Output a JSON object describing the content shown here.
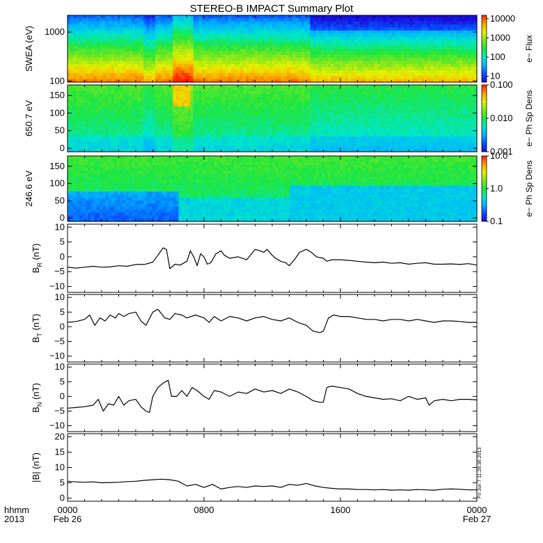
{
  "chart_data": {
    "type": "multi-panel",
    "title": "STEREO-B IMPACT Summary Plot",
    "x_axis": {
      "range": [
        "2013-02-26 00:00",
        "2013-02-27 00:00"
      ],
      "ticks": [
        {
          "value": "00:00",
          "top": "0000",
          "bottom": "Feb 26"
        },
        {
          "value": "08:00",
          "top": "0800",
          "bottom": ""
        },
        {
          "value": "16:00",
          "top": "1600",
          "bottom": ""
        },
        {
          "value": "24:00",
          "top": "0000",
          "bottom": "Feb 27"
        }
      ],
      "label_top": "hhmm",
      "label_bottom": "2013"
    },
    "side_stamp": "Fri Jun  7 11:28:36 2013",
    "spectrograms": [
      {
        "ylabel": "SWEA (eV)",
        "yscale": "log",
        "yrange": [
          95,
          2200
        ],
        "yticks": [
          "100",
          "1000"
        ],
        "ytick_values": [
          100,
          1000
        ],
        "colorbar_label": "e− Flux",
        "colorbar_scale": "log",
        "colorbar_range": [
          5,
          15000
        ],
        "colorbar_ticks": [
          "10",
          "100",
          "1000",
          "10000"
        ],
        "colorbar_tick_values": [
          10,
          100,
          1000,
          10000
        ]
      },
      {
        "ylabel": "650.7 eV",
        "yscale": "linear",
        "yrange": [
          -10,
          180
        ],
        "yticks": [
          "0",
          "50",
          "100",
          "150"
        ],
        "ytick_values": [
          0,
          50,
          100,
          150
        ],
        "colorbar_label": "e− Ph Sp Dens",
        "colorbar_scale": "log",
        "colorbar_range": [
          0.001,
          0.1
        ],
        "colorbar_ticks": [
          "0.001",
          "0.010",
          "0.100"
        ],
        "colorbar_tick_values": [
          0.001,
          0.01,
          0.1
        ]
      },
      {
        "ylabel": "246.6 eV",
        "yscale": "linear",
        "yrange": [
          -10,
          180
        ],
        "yticks": [
          "0",
          "50",
          "100",
          "150"
        ],
        "ytick_values": [
          0,
          50,
          100,
          150
        ],
        "colorbar_label": "e− Ph Sp Dens",
        "colorbar_scale": "log",
        "colorbar_range": [
          0.1,
          10
        ],
        "colorbar_ticks": [
          "0.1",
          "1.0",
          "10.0"
        ],
        "colorbar_tick_values": [
          0.1,
          1,
          10
        ]
      }
    ],
    "line_panels": [
      {
        "ylabel": "B",
        "ylabel_sub": "R",
        "ylabel_unit": "(nT)",
        "yrange": [
          -12,
          11
        ],
        "yticks": [
          "−10",
          "−5",
          "0",
          "5",
          "10"
        ],
        "ytick_values": [
          -10,
          -5,
          0,
          5,
          10
        ],
        "x_hours": [
          0,
          0.5,
          1,
          1.5,
          2,
          2.5,
          3,
          3.5,
          4,
          4.5,
          5,
          5.3,
          5.6,
          5.8,
          6,
          6.3,
          6.6,
          7,
          7.2,
          7.4,
          7.6,
          7.8,
          8,
          8.2,
          8.4,
          8.7,
          9,
          9.2,
          9.5,
          10,
          10.5,
          11,
          11.3,
          11.5,
          11.7,
          12,
          12.2,
          12.5,
          12.8,
          13,
          13.3,
          13.6,
          14,
          14.3,
          14.6,
          15,
          15.2,
          15.5,
          16,
          16.5,
          17,
          17.5,
          18,
          18.5,
          19,
          19.5,
          20,
          20.5,
          21,
          21.5,
          22,
          22.5,
          23,
          23.5,
          24
        ],
        "values": [
          -3.5,
          -3.8,
          -3.5,
          -3.2,
          -3.5,
          -3.4,
          -3,
          -3.2,
          -2.6,
          -2.6,
          -1.8,
          0.5,
          3,
          2.5,
          -4,
          -2.5,
          -2.8,
          -1.5,
          2,
          0,
          -3,
          1,
          0,
          -2.5,
          -2,
          1,
          2,
          0.5,
          -0.5,
          0,
          -1,
          2.5,
          2,
          1.5,
          2.5,
          0.5,
          -0.5,
          -1.5,
          -2,
          -3,
          -1,
          1.5,
          2.5,
          1.5,
          0,
          -0.5,
          -1.5,
          -1,
          -1,
          -1.2,
          -1.5,
          -1.8,
          -2,
          -1.8,
          -2.2,
          -2,
          -2.5,
          -2.2,
          -2,
          -2.5,
          -2.5,
          -2.4,
          -2.6,
          -2.3,
          -2.8
        ]
      },
      {
        "ylabel": "B",
        "ylabel_sub": "T",
        "ylabel_unit": "(nT)",
        "yrange": [
          -12,
          11
        ],
        "yticks": [
          "−10",
          "−5",
          "0",
          "5",
          "10"
        ],
        "ytick_values": [
          -10,
          -5,
          0,
          5,
          10
        ],
        "x_hours": [
          0,
          0.5,
          1,
          1.3,
          1.6,
          1.9,
          2.2,
          2.5,
          2.8,
          3,
          3.3,
          3.6,
          4,
          4.3,
          4.6,
          5,
          5.3,
          5.7,
          6,
          6.3,
          6.7,
          7,
          7.5,
          8,
          8.3,
          8.6,
          9,
          9.5,
          10,
          10.5,
          11,
          11.5,
          12,
          12.5,
          13,
          13.5,
          14,
          14.4,
          14.8,
          15,
          15.3,
          15.6,
          16,
          16.5,
          17,
          17.5,
          18,
          18.5,
          19,
          19.5,
          20,
          20.5,
          21,
          21.5,
          22,
          22.5,
          23,
          23.5,
          24
        ],
        "values": [
          1.5,
          1.8,
          2.5,
          4,
          0.5,
          3,
          2,
          4,
          3,
          4.5,
          3.5,
          4.5,
          5,
          2,
          0.5,
          5,
          6,
          3,
          2.5,
          4.5,
          4,
          3,
          4,
          3,
          1.5,
          3.5,
          2,
          3.5,
          3,
          2,
          3,
          3.5,
          2.5,
          2,
          3,
          1.5,
          0.5,
          -1.5,
          -2,
          -1.5,
          3,
          4,
          3.5,
          3.5,
          3,
          2.5,
          2.5,
          2,
          2.5,
          2.5,
          2,
          2.5,
          2,
          1.5,
          2,
          2,
          1.8,
          1.5,
          1.5
        ]
      },
      {
        "ylabel": "B",
        "ylabel_sub": "N",
        "ylabel_unit": "(nT)",
        "yrange": [
          -12,
          11
        ],
        "yticks": [
          "−10",
          "−5",
          "0",
          "5",
          "10"
        ],
        "ytick_values": [
          -10,
          -5,
          0,
          5,
          10
        ],
        "x_hours": [
          0,
          0.5,
          1,
          1.5,
          1.8,
          2.1,
          2.4,
          2.7,
          3,
          3.3,
          3.6,
          4,
          4.3,
          4.6,
          4.8,
          5,
          5.3,
          5.6,
          5.9,
          6.1,
          6.4,
          6.7,
          7,
          7.3,
          7.6,
          8,
          8.3,
          8.6,
          9,
          9.5,
          10,
          10.5,
          11,
          11.5,
          12,
          12.5,
          13,
          13.5,
          14,
          14.4,
          14.8,
          15,
          15.2,
          15.5,
          16,
          16.5,
          17,
          17.5,
          18,
          18.5,
          19,
          19.5,
          20,
          20.5,
          21,
          21.2,
          21.5,
          22,
          22.5,
          23,
          23.5,
          24
        ],
        "values": [
          -4,
          -3.8,
          -3.5,
          -3,
          -1,
          -5,
          -2.5,
          -3,
          0,
          -3,
          -1.5,
          -1,
          -3.5,
          -5,
          -5.5,
          0,
          3,
          4.5,
          5.5,
          0,
          0,
          2,
          0,
          3,
          2,
          0,
          -1,
          2,
          1.5,
          0,
          1.5,
          1,
          2.5,
          1.5,
          2,
          1,
          2.5,
          1.5,
          0,
          -1.5,
          -2,
          -2,
          3,
          3.5,
          3,
          2.5,
          1,
          0,
          -0.5,
          -1,
          -0.8,
          -1.5,
          0,
          -1,
          -0.5,
          -3,
          -1.5,
          -1,
          -1.5,
          -1,
          -1,
          -1.2
        ]
      },
      {
        "ylabel": "|B|",
        "ylabel_sub": "",
        "ylabel_unit": "(nT)",
        "yrange": [
          -1,
          21
        ],
        "yticks": [
          "0",
          "5",
          "10",
          "15",
          "20"
        ],
        "ytick_values": [
          0,
          5,
          10,
          15,
          20
        ],
        "x_hours": [
          0,
          0.5,
          1,
          1.5,
          2,
          2.5,
          3,
          3.5,
          4,
          4.5,
          5,
          5.5,
          6,
          6.5,
          7,
          7.5,
          8,
          8.5,
          9,
          9.5,
          10,
          10.5,
          11,
          11.5,
          12,
          12.5,
          13,
          13.5,
          14,
          14.5,
          15,
          15.5,
          16,
          16.5,
          17,
          17.5,
          18,
          18.5,
          19,
          19.5,
          20,
          20.5,
          21,
          21.5,
          22,
          22.5,
          23,
          23.5,
          24
        ],
        "values": [
          5.5,
          5.3,
          5.2,
          5.3,
          5,
          5.1,
          5.2,
          5.4,
          5.5,
          5.8,
          6,
          6.2,
          6,
          5.5,
          4,
          4.5,
          3.5,
          4.5,
          3,
          3.5,
          3.8,
          3.5,
          4,
          3.8,
          4,
          3.5,
          4.5,
          4.2,
          4.8,
          4,
          3.5,
          3.2,
          3,
          3,
          2.8,
          2.8,
          2.7,
          2.8,
          2.6,
          2.7,
          2.6,
          2.8,
          2.7,
          2.6,
          2.9,
          3,
          2.9,
          2.7,
          2.7
        ]
      }
    ]
  }
}
